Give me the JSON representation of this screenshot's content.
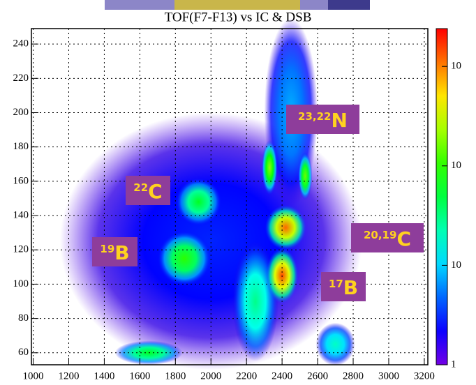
{
  "chart_data": {
    "type": "heatmap2d",
    "title": "TOF(F7-F13) vs IC & DSB",
    "xlim": [
      990,
      3220
    ],
    "xticks": [
      1000,
      1200,
      1400,
      1600,
      1800,
      2000,
      2200,
      2400,
      2600,
      2800,
      3000,
      3200
    ],
    "ylim": [
      53,
      249
    ],
    "yticks": [
      60,
      80,
      100,
      120,
      140,
      160,
      180,
      200,
      220,
      240
    ],
    "grid": true,
    "zscale": "log",
    "zlim": [
      1,
      2400
    ],
    "zticks": [
      1,
      {
        "value": 10,
        "label": "10"
      },
      {
        "value": 100,
        "label": "10"
      },
      {
        "value": 1000,
        "label": "10"
      }
    ],
    "clusters": {
      "x": [
        2000,
        2450,
        2250,
        2700,
        1650,
        1930,
        1850,
        2330,
        2530,
        2420,
        2400
      ],
      "y": [
        125,
        200,
        90,
        65,
        60,
        148,
        115,
        168,
        163,
        133,
        105
      ],
      "x_width": [
        1700,
        300,
        260,
        220,
        380,
        260,
        300,
        90,
        80,
        230,
        180
      ],
      "y_height": [
        150,
        110,
        70,
        25,
        14,
        28,
        32,
        32,
        28,
        26,
        32
      ],
      "values": [
        3,
        8,
        30,
        20,
        60,
        60,
        100,
        200,
        150,
        1200,
        1500
      ]
    },
    "annotations": [
      {
        "mass": "23,22",
        "element": "N"
      },
      {
        "mass": "22",
        "element": "C"
      },
      {
        "mass": "20,19",
        "element": "C"
      },
      {
        "mass": "19",
        "element": "B"
      },
      {
        "mass": "17",
        "element": "B"
      }
    ]
  }
}
